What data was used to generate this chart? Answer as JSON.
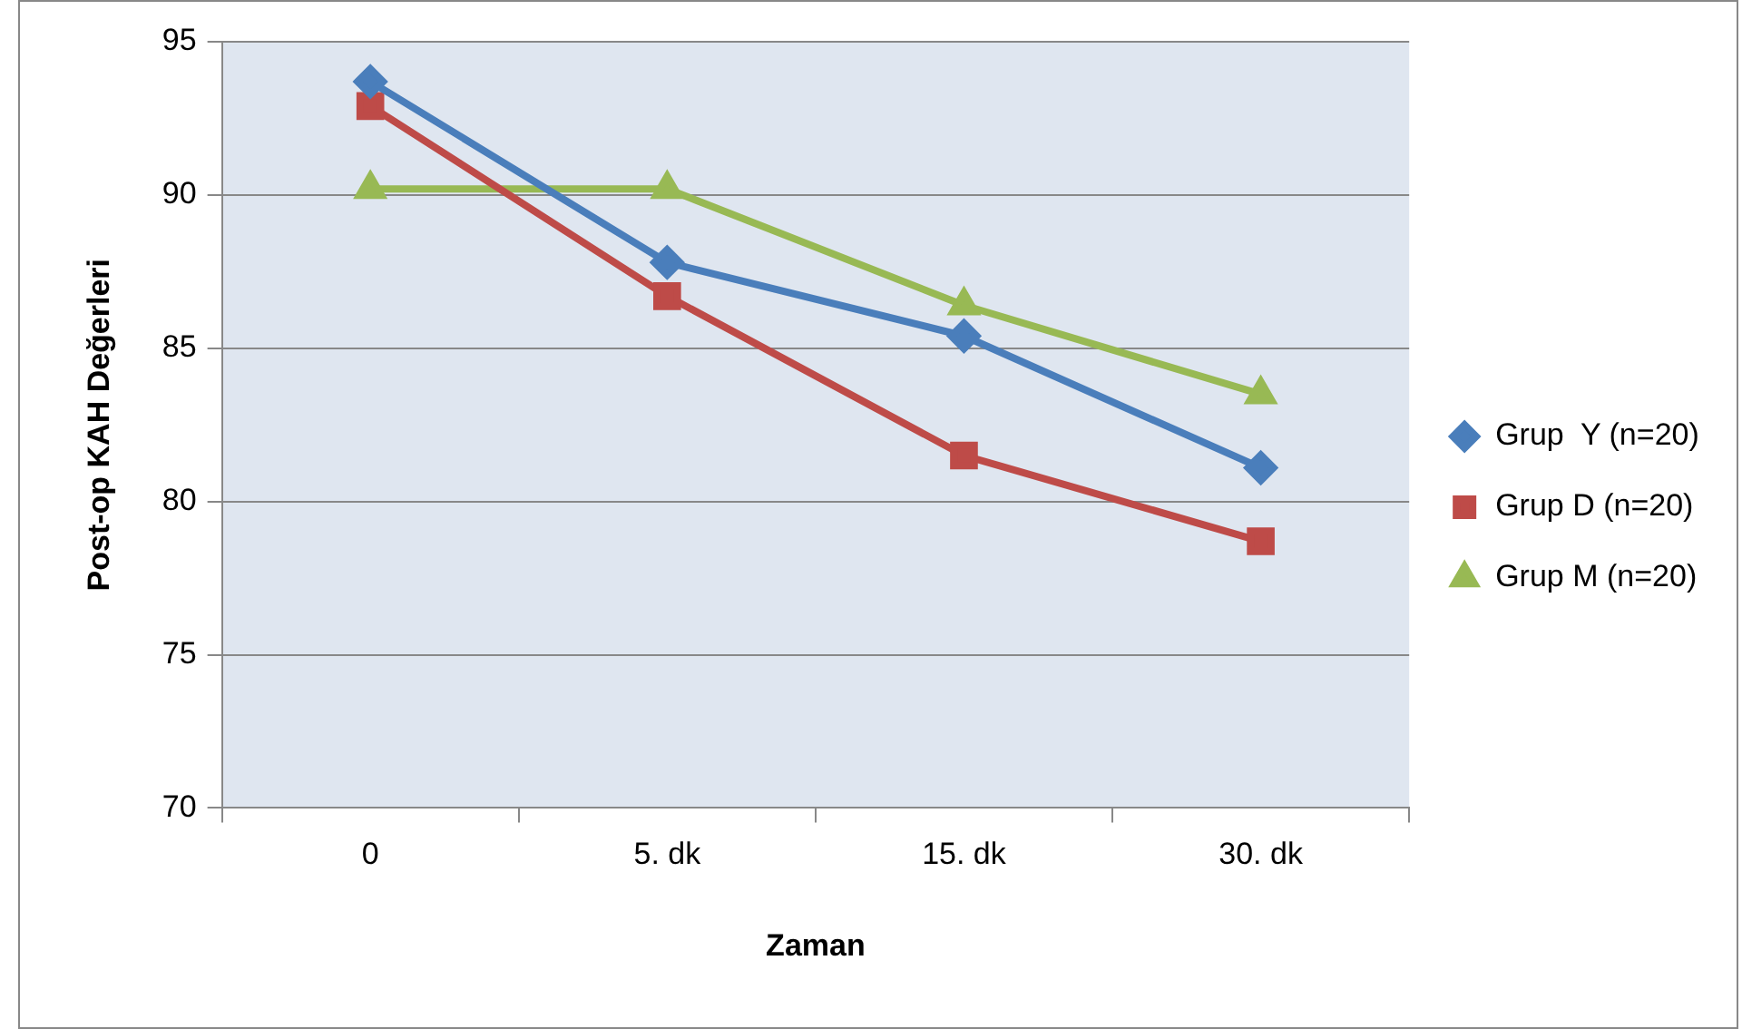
{
  "chart_data": {
    "type": "line",
    "xlabel": "Zaman",
    "ylabel": "Post-op KAH Değerleri",
    "categories": [
      "0",
      "5. dk",
      "15. dk",
      "30. dk"
    ],
    "series": [
      {
        "name": "Grup  Y (n=20)",
        "color": "#4a7ebb",
        "marker": "diamond",
        "values": [
          93.7,
          87.8,
          85.4,
          81.1
        ]
      },
      {
        "name": "Grup D (n=20)",
        "color": "#be4b48",
        "marker": "square",
        "values": [
          92.9,
          86.7,
          81.5,
          78.7
        ]
      },
      {
        "name": "Grup M (n=20)",
        "color": "#98b954",
        "marker": "triangle",
        "values": [
          90.2,
          90.2,
          86.4,
          83.5
        ]
      }
    ],
    "ylim": [
      70,
      95
    ],
    "yticks": [
      70,
      75,
      80,
      85,
      90,
      95
    ],
    "grid": "y",
    "legend": "right"
  }
}
